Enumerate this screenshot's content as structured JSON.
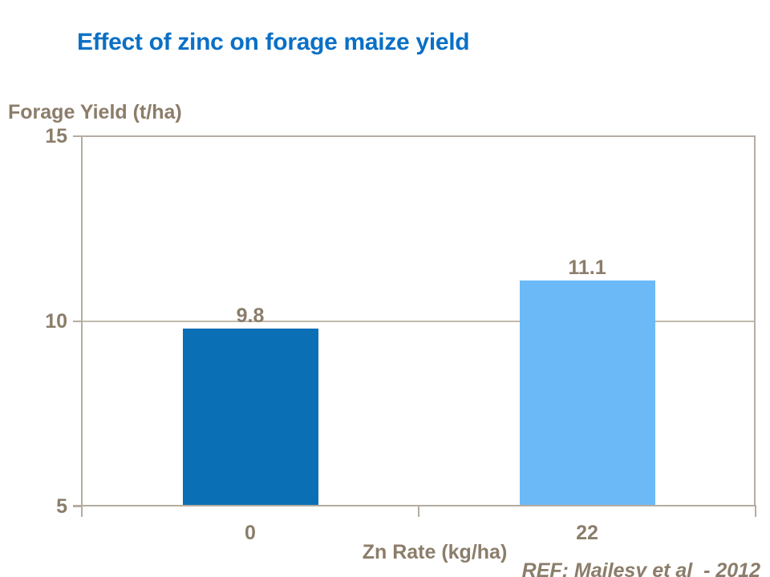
{
  "page": {
    "title": "Effect of zinc on forage maize yield",
    "reference": "REF: Majlesy et al  - 2012"
  },
  "chart_data": {
    "type": "bar",
    "title": "Effect of zinc on forage maize yield",
    "xlabel": "Zn Rate (kg/ha)",
    "ylabel": "Forage Yield (t/ha)",
    "categories": [
      "0",
      "22"
    ],
    "values": [
      9.8,
      11.1
    ],
    "data_labels": [
      "9.8",
      "11.1"
    ],
    "bar_colors": [
      "#0a6fb5",
      "#6bbaf7"
    ],
    "ylim": [
      5,
      15
    ],
    "yticks": [
      15,
      10,
      5
    ],
    "gridlines": [
      10
    ],
    "grid": "horizontal-at-10-only",
    "legend": false,
    "annotation": "REF: Majlesy et al  - 2012"
  },
  "colors": {
    "title": "#0a70c6",
    "text": "#8b7d6a",
    "frame": "#b5aca1",
    "gridline": "#c2b9ad",
    "bar_dark": "#0a6fb5",
    "bar_light": "#6bbaf7",
    "background": "#ffffff"
  }
}
